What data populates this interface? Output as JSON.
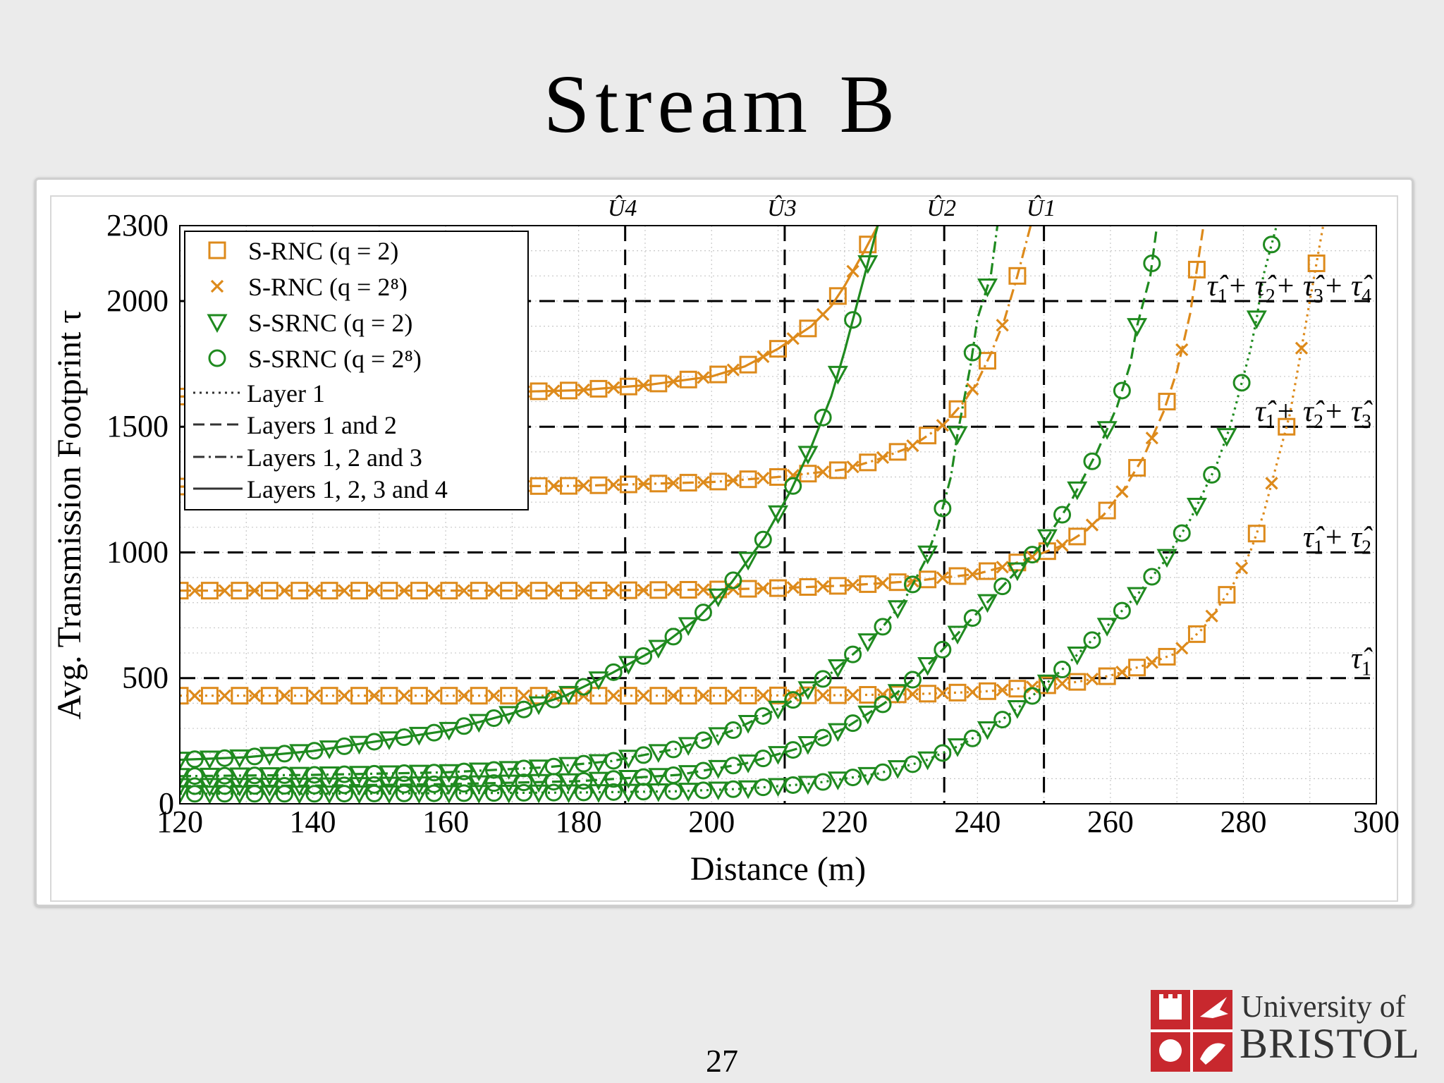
{
  "slide": {
    "title": "Stream B",
    "page_number": "27",
    "logo_line1": "University of",
    "logo_line2": "BRISTOL"
  },
  "colors": {
    "orange": "#dd8a1b",
    "green": "#1f8a1f",
    "black": "#000000",
    "grid": "#c8c8c8"
  },
  "chart_data": {
    "type": "line",
    "xlabel": "Distance (m)",
    "ylabel": "Avg. Transmission Footprint τ",
    "xlim": [
      120,
      300
    ],
    "ylim": [
      0,
      2300
    ],
    "xticks": [
      120,
      140,
      160,
      180,
      200,
      220,
      240,
      260,
      280,
      300
    ],
    "yticks": [
      0,
      500,
      1000,
      1500,
      2000,
      2300
    ],
    "grid": "dotted minor",
    "legend": {
      "position": "top-left",
      "entries": [
        {
          "label": "S-RNC",
          "param": "(q = 2)",
          "marker": "square",
          "color": "#dd8a1b"
        },
        {
          "label": "S-RNC",
          "param": "(q = 2⁸)",
          "marker": "x",
          "color": "#dd8a1b"
        },
        {
          "label": "S-SRNC",
          "param": "(q = 2)",
          "marker": "triangle-down",
          "color": "#1f8a1f"
        },
        {
          "label": "S-SRNC",
          "param": "(q = 2⁸)",
          "marker": "circle",
          "color": "#1f8a1f"
        },
        {
          "label": "Layer 1",
          "linestyle": "dotted"
        },
        {
          "label": "Layers 1 and 2",
          "linestyle": "dashed"
        },
        {
          "label": "Layers 1, 2 and 3",
          "linestyle": "dashdot"
        },
        {
          "label": "Layers 1, 2, 3 and 4",
          "linestyle": "solid"
        }
      ]
    },
    "vlines": [
      {
        "x": 187,
        "label": "Û4"
      },
      {
        "x": 211,
        "label": "Û3"
      },
      {
        "x": 235,
        "label": "Û2"
      },
      {
        "x": 250,
        "label": "Û1"
      }
    ],
    "hlines": [
      {
        "y": 500,
        "label": "τ̂1"
      },
      {
        "y": 1000,
        "label": "τ̂1 + τ̂2"
      },
      {
        "y": 1500,
        "label": "τ̂1 + τ̂2 + τ̂3"
      },
      {
        "y": 2000,
        "label": "τ̂1 + τ̂2 + τ̂3 + τ̂4"
      }
    ],
    "series": [
      {
        "name": "S-RNC (q = 2), Layer 1",
        "family": "rnc",
        "linestyle": "dotted",
        "points": [
          [
            120,
            430
          ],
          [
            140,
            430
          ],
          [
            160,
            430
          ],
          [
            180,
            430
          ],
          [
            200,
            430
          ],
          [
            210,
            431
          ],
          [
            220,
            432
          ],
          [
            230,
            436
          ],
          [
            240,
            445
          ],
          [
            245,
            455
          ],
          [
            250,
            470
          ],
          [
            255,
            485
          ],
          [
            260,
            510
          ],
          [
            265,
            550
          ],
          [
            270,
            600
          ],
          [
            274,
            700
          ],
          [
            278,
            850
          ],
          [
            281,
            1000
          ],
          [
            283,
            1150
          ],
          [
            285,
            1350
          ],
          [
            287,
            1550
          ],
          [
            288,
            1700
          ],
          [
            290,
            2000
          ],
          [
            292,
            2300
          ]
        ]
      },
      {
        "name": "S-RNC (q = 2), Layers 1 and 2",
        "family": "rnc",
        "linestyle": "dashed",
        "points": [
          [
            120,
            848
          ],
          [
            140,
            848
          ],
          [
            160,
            848
          ],
          [
            180,
            848
          ],
          [
            200,
            852
          ],
          [
            210,
            858
          ],
          [
            220,
            868
          ],
          [
            230,
            885
          ],
          [
            240,
            915
          ],
          [
            245,
            950
          ],
          [
            250,
            1000
          ],
          [
            253,
            1030
          ],
          [
            256,
            1080
          ],
          [
            259,
            1150
          ],
          [
            262,
            1250
          ],
          [
            265,
            1380
          ],
          [
            268,
            1560
          ],
          [
            270,
            1720
          ],
          [
            272,
            1950
          ],
          [
            274,
            2300
          ]
        ]
      },
      {
        "name": "S-RNC (q = 2), Layers 1, 2 and 3",
        "family": "rnc",
        "linestyle": "dashdot",
        "points": [
          [
            120,
            1262
          ],
          [
            140,
            1262
          ],
          [
            160,
            1262
          ],
          [
            180,
            1265
          ],
          [
            200,
            1280
          ],
          [
            210,
            1300
          ],
          [
            220,
            1330
          ],
          [
            225,
            1370
          ],
          [
            230,
            1420
          ],
          [
            235,
            1510
          ],
          [
            238,
            1600
          ],
          [
            240,
            1680
          ],
          [
            242,
            1790
          ],
          [
            244,
            1920
          ],
          [
            246,
            2100
          ],
          [
            248,
            2300
          ]
        ]
      },
      {
        "name": "S-RNC (q = 2), Layers 1, 2, 3 and 4",
        "family": "rnc",
        "linestyle": "solid",
        "points": [
          [
            120,
            1620
          ],
          [
            140,
            1625
          ],
          [
            160,
            1632
          ],
          [
            180,
            1645
          ],
          [
            190,
            1665
          ],
          [
            200,
            1700
          ],
          [
            205,
            1740
          ],
          [
            210,
            1810
          ],
          [
            215,
            1900
          ],
          [
            218,
            1980
          ],
          [
            220,
            2060
          ],
          [
            223,
            2200
          ],
          [
            225,
            2300
          ]
        ]
      },
      {
        "name": "S-SRNC, Layer 1",
        "family": "srnc",
        "linestyle": "dotted",
        "points": [
          [
            120,
            40
          ],
          [
            140,
            40
          ],
          [
            160,
            42
          ],
          [
            180,
            45
          ],
          [
            195,
            50
          ],
          [
            205,
            60
          ],
          [
            215,
            80
          ],
          [
            225,
            120
          ],
          [
            232,
            170
          ],
          [
            238,
            240
          ],
          [
            243,
            320
          ],
          [
            247,
            400
          ],
          [
            250,
            470
          ],
          [
            253,
            540
          ],
          [
            256,
            620
          ],
          [
            260,
            720
          ],
          [
            264,
            830
          ],
          [
            268,
            960
          ],
          [
            272,
            1130
          ],
          [
            276,
            1350
          ],
          [
            278,
            1500
          ],
          [
            281,
            1800
          ],
          [
            282,
            1930
          ],
          [
            283,
            2100
          ],
          [
            285,
            2300
          ]
        ]
      },
      {
        "name": "S-SRNC, Layers 1 and 2",
        "family": "srnc",
        "linestyle": "dashed",
        "points": [
          [
            120,
            70
          ],
          [
            140,
            72
          ],
          [
            160,
            78
          ],
          [
            180,
            90
          ],
          [
            195,
            115
          ],
          [
            205,
            160
          ],
          [
            213,
            220
          ],
          [
            220,
            300
          ],
          [
            226,
            400
          ],
          [
            231,
            510
          ],
          [
            235,
            620
          ],
          [
            240,
            760
          ],
          [
            245,
            900
          ],
          [
            250,
            1040
          ],
          [
            254,
            1200
          ],
          [
            258,
            1400
          ],
          [
            261,
            1580
          ],
          [
            263,
            1750
          ],
          [
            264,
            1900
          ],
          [
            266,
            2100
          ],
          [
            267,
            2300
          ]
        ]
      },
      {
        "name": "S-SRNC, Layers 1, 2 and 3",
        "family": "srnc",
        "linestyle": "dashdot",
        "points": [
          [
            120,
            110
          ],
          [
            140,
            115
          ],
          [
            160,
            125
          ],
          [
            175,
            145
          ],
          [
            185,
            170
          ],
          [
            195,
            220
          ],
          [
            203,
            290
          ],
          [
            211,
            390
          ],
          [
            218,
            520
          ],
          [
            225,
            680
          ],
          [
            229,
            810
          ],
          [
            232,
            960
          ],
          [
            234,
            1100
          ],
          [
            236,
            1300
          ],
          [
            237,
            1470
          ],
          [
            239,
            1750
          ],
          [
            240,
            1930
          ],
          [
            242,
            2100
          ],
          [
            243,
            2300
          ]
        ]
      },
      {
        "name": "S-SRNC, Layers 1, 2, 3 and 4",
        "family": "srnc",
        "linestyle": "solid",
        "points": [
          [
            120,
            175
          ],
          [
            130,
            185
          ],
          [
            140,
            210
          ],
          [
            150,
            250
          ],
          [
            160,
            290
          ],
          [
            170,
            360
          ],
          [
            178,
            430
          ],
          [
            185,
            520
          ],
          [
            192,
            620
          ],
          [
            198,
            740
          ],
          [
            203,
            880
          ],
          [
            208,
            1060
          ],
          [
            212,
            1250
          ],
          [
            215,
            1420
          ],
          [
            218,
            1620
          ],
          [
            220,
            1800
          ],
          [
            222,
            2000
          ],
          [
            224,
            2200
          ],
          [
            225,
            2300
          ]
        ]
      }
    ]
  }
}
